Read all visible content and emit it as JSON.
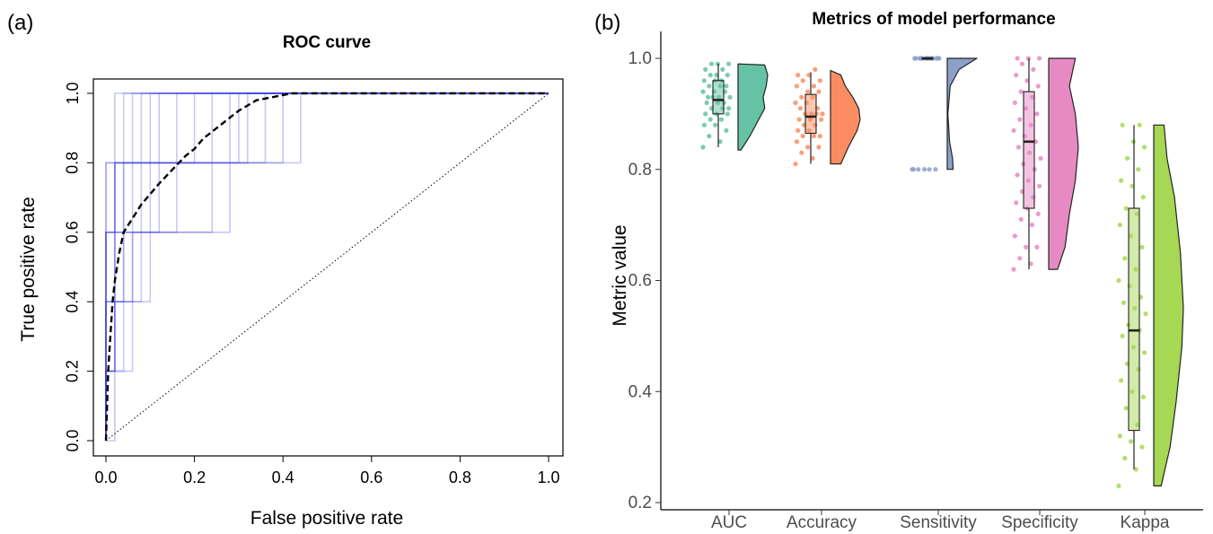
{
  "chart_data": [
    {
      "panel": "(a)",
      "type": "line",
      "title": "ROC curve",
      "xlabel": "False positive rate",
      "ylabel": "True positive rate",
      "xlim": [
        0,
        1
      ],
      "ylim": [
        0,
        1
      ],
      "xticks": [
        "0.0",
        "0.2",
        "0.4",
        "0.6",
        "0.8",
        "1.0"
      ],
      "yticks": [
        "0.0",
        "0.2",
        "0.4",
        "0.6",
        "0.8",
        "1.0"
      ],
      "colors": {
        "resample_curves": "#3a3ae0",
        "mean_curve": "#000000",
        "diagonal": "#000000"
      },
      "resample_curves": [
        [
          [
            0,
            0
          ],
          [
            0,
            0.2
          ],
          [
            0.02,
            0.2
          ],
          [
            0.02,
            0.6
          ],
          [
            0.04,
            0.6
          ],
          [
            0.04,
            0.8
          ],
          [
            0.12,
            0.8
          ],
          [
            0.12,
            1
          ],
          [
            1,
            1
          ]
        ],
        [
          [
            0,
            0
          ],
          [
            0,
            0.4
          ],
          [
            0.02,
            0.4
          ],
          [
            0.02,
            0.8
          ],
          [
            0.06,
            0.8
          ],
          [
            0.06,
            1
          ],
          [
            1,
            1
          ]
        ],
        [
          [
            0,
            0
          ],
          [
            0,
            0.2
          ],
          [
            0.04,
            0.2
          ],
          [
            0.04,
            0.4
          ],
          [
            0.08,
            0.4
          ],
          [
            0.08,
            0.8
          ],
          [
            0.2,
            0.8
          ],
          [
            0.2,
            1
          ],
          [
            1,
            1
          ]
        ],
        [
          [
            0,
            0
          ],
          [
            0,
            0.6
          ],
          [
            0.02,
            0.6
          ],
          [
            0.02,
            0.8
          ],
          [
            0.28,
            0.8
          ],
          [
            0.28,
            1
          ],
          [
            1,
            1
          ]
        ],
        [
          [
            0,
            0
          ],
          [
            0.02,
            0
          ],
          [
            0.02,
            0.4
          ],
          [
            0.06,
            0.4
          ],
          [
            0.06,
            0.6
          ],
          [
            0.16,
            0.6
          ],
          [
            0.16,
            0.8
          ],
          [
            0.3,
            0.8
          ],
          [
            0.3,
            1
          ],
          [
            1,
            1
          ]
        ],
        [
          [
            0,
            0
          ],
          [
            0,
            0.2
          ],
          [
            0.06,
            0.2
          ],
          [
            0.06,
            0.6
          ],
          [
            0.24,
            0.6
          ],
          [
            0.24,
            0.8
          ],
          [
            0.36,
            0.8
          ],
          [
            0.36,
            1
          ],
          [
            1,
            1
          ]
        ],
        [
          [
            0,
            0
          ],
          [
            0,
            0.4
          ],
          [
            0.1,
            0.4
          ],
          [
            0.1,
            0.8
          ],
          [
            0.44,
            0.8
          ],
          [
            0.44,
            1
          ],
          [
            1,
            1
          ]
        ],
        [
          [
            0,
            0
          ],
          [
            0,
            0.8
          ],
          [
            0.04,
            0.8
          ],
          [
            0.04,
            1
          ],
          [
            1,
            1
          ]
        ],
        [
          [
            0,
            0
          ],
          [
            0,
            0.6
          ],
          [
            0.02,
            0.6
          ],
          [
            0.02,
            0.8
          ],
          [
            0.08,
            0.8
          ],
          [
            0.08,
            1
          ],
          [
            1,
            1
          ]
        ],
        [
          [
            0,
            0
          ],
          [
            0,
            0.2
          ],
          [
            0.02,
            0.2
          ],
          [
            0.02,
            0.4
          ],
          [
            0.04,
            0.4
          ],
          [
            0.04,
            0.6
          ],
          [
            0.28,
            0.6
          ],
          [
            0.28,
            0.8
          ],
          [
            0.4,
            0.8
          ],
          [
            0.4,
            1
          ],
          [
            1,
            1
          ]
        ],
        [
          [
            0,
            0
          ],
          [
            0,
            0.4
          ],
          [
            0.04,
            0.4
          ],
          [
            0.04,
            0.8
          ],
          [
            0.16,
            0.8
          ],
          [
            0.16,
            1
          ],
          [
            1,
            1
          ]
        ],
        [
          [
            0,
            0
          ],
          [
            0,
            0.6
          ],
          [
            0.06,
            0.6
          ],
          [
            0.06,
            0.8
          ],
          [
            0.24,
            0.8
          ],
          [
            0.24,
            1
          ],
          [
            1,
            1
          ]
        ],
        [
          [
            0,
            0
          ],
          [
            0,
            0.2
          ],
          [
            0.02,
            0.2
          ],
          [
            0.02,
            0.6
          ],
          [
            0.12,
            0.6
          ],
          [
            0.12,
            0.8
          ],
          [
            0.32,
            0.8
          ],
          [
            0.32,
            1
          ],
          [
            1,
            1
          ]
        ],
        [
          [
            0,
            0
          ],
          [
            0,
            0.8
          ],
          [
            0.1,
            0.8
          ],
          [
            0.1,
            1
          ],
          [
            1,
            1
          ]
        ],
        [
          [
            0,
            0
          ],
          [
            0,
            0.6
          ],
          [
            0.02,
            0.6
          ],
          [
            0.02,
            1
          ],
          [
            1,
            1
          ]
        ]
      ],
      "mean_curve": {
        "x": [
          0,
          0.005,
          0.01,
          0.015,
          0.02,
          0.03,
          0.04,
          0.06,
          0.08,
          0.1,
          0.12,
          0.15,
          0.18,
          0.2,
          0.22,
          0.25,
          0.28,
          0.3,
          0.34,
          0.38,
          0.42,
          0.46,
          0.5,
          1.0
        ],
        "y": [
          0,
          0.2,
          0.3,
          0.4,
          0.46,
          0.54,
          0.6,
          0.64,
          0.68,
          0.71,
          0.74,
          0.78,
          0.82,
          0.84,
          0.87,
          0.9,
          0.93,
          0.95,
          0.98,
          0.99,
          1.0,
          1.0,
          1.0,
          1.0
        ]
      }
    },
    {
      "panel": "(b)",
      "type": "box",
      "title": "Metrics of model performance",
      "xlabel": "",
      "ylabel": "Metric value",
      "ylim": [
        0.2,
        1.03
      ],
      "yticks": [
        "0.2",
        "0.4",
        "0.6",
        "0.8",
        "1.0"
      ],
      "categories": [
        "AUC",
        "Accuracy",
        "Sensitivity",
        "Specificity",
        "Kappa"
      ],
      "colors": [
        "#66c2a5",
        "#fc8d62",
        "#8da0cb",
        "#e78ac3",
        "#a6d854"
      ],
      "series": [
        {
          "box": {
            "min": 0.84,
            "q1": 0.9,
            "median": 0.925,
            "q3": 0.96,
            "max": 0.99
          },
          "points": [
            0.84,
            0.85,
            0.86,
            0.87,
            0.88,
            0.88,
            0.89,
            0.89,
            0.9,
            0.9,
            0.9,
            0.91,
            0.91,
            0.91,
            0.92,
            0.92,
            0.92,
            0.93,
            0.93,
            0.93,
            0.93,
            0.94,
            0.94,
            0.94,
            0.95,
            0.95,
            0.95,
            0.96,
            0.96,
            0.96,
            0.97,
            0.97,
            0.97,
            0.98,
            0.98,
            0.99,
            0.99,
            0.99
          ],
          "density": [
            [
              0.835,
              0.1
            ],
            [
              0.86,
              0.4
            ],
            [
              0.89,
              0.7
            ],
            [
              0.91,
              0.9
            ],
            [
              0.93,
              0.85
            ],
            [
              0.95,
              0.95
            ],
            [
              0.97,
              1.0
            ],
            [
              0.988,
              0.9
            ],
            [
              0.99,
              0.0
            ]
          ]
        },
        {
          "box": {
            "min": 0.81,
            "q1": 0.865,
            "median": 0.895,
            "q3": 0.935,
            "max": 0.975
          },
          "points": [
            0.81,
            0.82,
            0.83,
            0.84,
            0.84,
            0.85,
            0.86,
            0.86,
            0.86,
            0.87,
            0.87,
            0.88,
            0.88,
            0.89,
            0.89,
            0.89,
            0.9,
            0.9,
            0.9,
            0.9,
            0.91,
            0.91,
            0.92,
            0.92,
            0.93,
            0.93,
            0.94,
            0.94,
            0.95,
            0.95,
            0.96,
            0.96,
            0.97,
            0.97,
            0.98
          ],
          "density": [
            [
              0.81,
              0.35
            ],
            [
              0.84,
              0.6
            ],
            [
              0.87,
              0.9
            ],
            [
              0.89,
              1.0
            ],
            [
              0.91,
              0.95
            ],
            [
              0.93,
              0.75
            ],
            [
              0.95,
              0.5
            ],
            [
              0.97,
              0.35
            ],
            [
              0.978,
              0.0
            ]
          ]
        },
        {
          "box": {
            "min": 1.0,
            "q1": 1.0,
            "median": 1.0,
            "q3": 1.0,
            "max": 1.0
          },
          "points": [
            0.8,
            0.8,
            0.8,
            0.8,
            0.8,
            0.8,
            1.0,
            1.0,
            1.0,
            1.0,
            1.0,
            1.0,
            1.0,
            1.0,
            1.0,
            1.0,
            1.0,
            1.0,
            1.0,
            1.0
          ],
          "density": [
            [
              0.8,
              0.2
            ],
            [
              0.82,
              0.18
            ],
            [
              0.85,
              0.08
            ],
            [
              0.9,
              0.02
            ],
            [
              0.95,
              0.1
            ],
            [
              0.98,
              0.4
            ],
            [
              1.0,
              1.0
            ]
          ]
        },
        {
          "box": {
            "min": 0.62,
            "q1": 0.73,
            "median": 0.85,
            "q3": 0.94,
            "max": 1.0
          },
          "points": [
            0.62,
            0.63,
            0.64,
            0.66,
            0.66,
            0.68,
            0.7,
            0.71,
            0.72,
            0.73,
            0.74,
            0.75,
            0.76,
            0.77,
            0.78,
            0.79,
            0.8,
            0.81,
            0.82,
            0.83,
            0.84,
            0.85,
            0.86,
            0.87,
            0.88,
            0.89,
            0.9,
            0.91,
            0.92,
            0.93,
            0.94,
            0.95,
            0.96,
            0.97,
            0.98,
            0.99,
            1.0,
            1.0,
            1.0
          ],
          "density": [
            [
              0.62,
              0.3
            ],
            [
              0.66,
              0.55
            ],
            [
              0.72,
              0.7
            ],
            [
              0.78,
              0.9
            ],
            [
              0.84,
              1.0
            ],
            [
              0.9,
              0.9
            ],
            [
              0.95,
              0.7
            ],
            [
              1.0,
              0.9
            ]
          ]
        },
        {
          "box": {
            "min": 0.26,
            "q1": 0.33,
            "median": 0.51,
            "q3": 0.73,
            "max": 0.88
          },
          "points": [
            0.23,
            0.26,
            0.28,
            0.3,
            0.31,
            0.32,
            0.34,
            0.37,
            0.39,
            0.4,
            0.42,
            0.44,
            0.45,
            0.47,
            0.48,
            0.5,
            0.51,
            0.52,
            0.54,
            0.55,
            0.56,
            0.57,
            0.59,
            0.6,
            0.62,
            0.64,
            0.66,
            0.68,
            0.7,
            0.72,
            0.73,
            0.75,
            0.77,
            0.78,
            0.8,
            0.82,
            0.84,
            0.85,
            0.88,
            0.88
          ],
          "density": [
            [
              0.23,
              0.25
            ],
            [
              0.3,
              0.55
            ],
            [
              0.38,
              0.75
            ],
            [
              0.48,
              0.95
            ],
            [
              0.55,
              1.0
            ],
            [
              0.65,
              0.9
            ],
            [
              0.75,
              0.7
            ],
            [
              0.82,
              0.45
            ],
            [
              0.88,
              0.35
            ]
          ]
        }
      ]
    }
  ]
}
